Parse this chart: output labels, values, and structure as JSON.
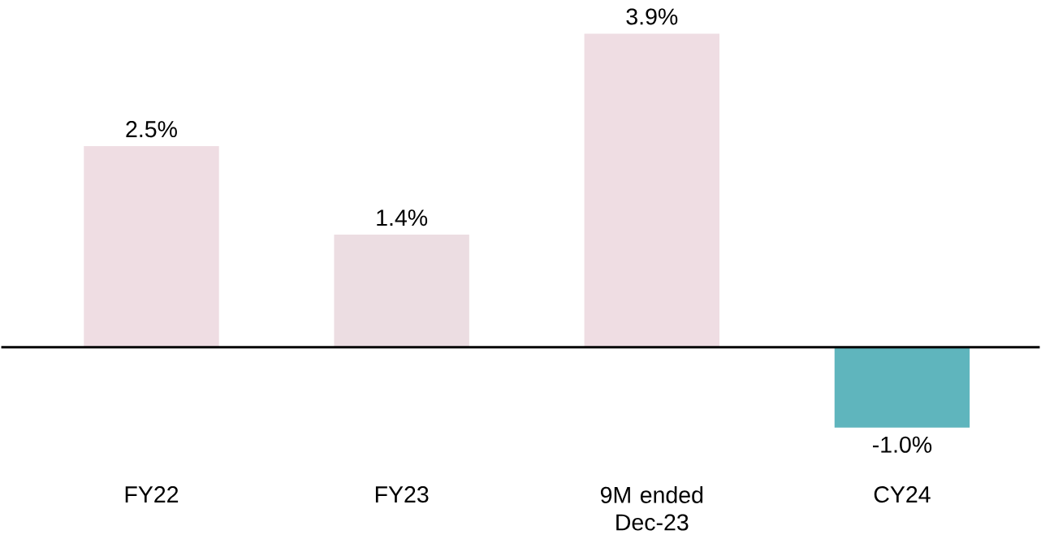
{
  "chart_data": {
    "type": "bar",
    "categories": [
      "FY22",
      "FY23",
      "9M ended Dec-23",
      "CY24"
    ],
    "values": [
      2.5,
      1.4,
      3.9,
      -1.0
    ],
    "value_labels": [
      "2.5%",
      "1.4%",
      "3.9%",
      "-1.0%"
    ],
    "colors": [
      "#efdde3",
      "#ecdde2",
      "#efdde3",
      "#5fb5bd"
    ]
  }
}
